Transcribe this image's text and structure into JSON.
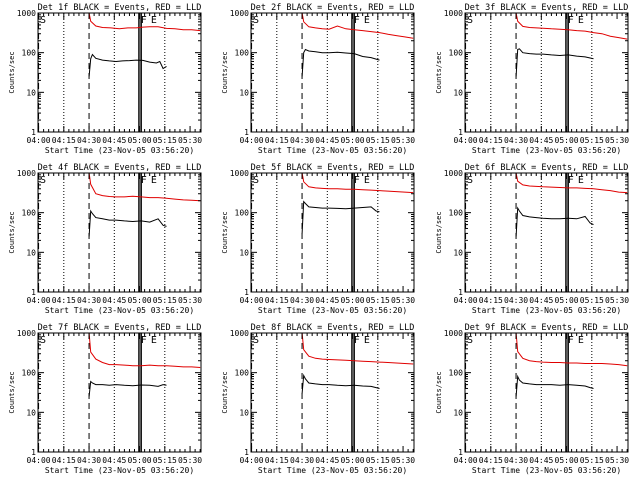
{
  "chart_data": [
    {
      "type": "line",
      "title": "Det 1f BLACK = Events, RED = LLD",
      "xlabel": "Start Time (23-Nov-05 03:56:20)",
      "ylabel": "Counts/sec",
      "x_tick_labels": [
        "04:00",
        "04:15",
        "04:30",
        "04:45",
        "05:00",
        "05:15",
        "05:30"
      ],
      "x_ticks_min": [
        4,
        19,
        34,
        49,
        64,
        79,
        94
      ],
      "xlim_min": [
        3.67,
        100.5
      ],
      "y_tick_labels": [
        "1",
        "10",
        "100",
        "1000"
      ],
      "ylim": [
        1,
        1000
      ],
      "yscale": "log",
      "markers": {
        "S": 3.67,
        "F": 63.5,
        "E": 69.5
      },
      "vlines": {
        "dotted": [
          19,
          49,
          79
        ],
        "dashed": [
          4,
          34
        ],
        "solid": [
          63.5,
          64.3,
          65.1
        ]
      },
      "series": [
        {
          "color": "#e00000",
          "x": [
            34,
            35,
            38,
            42,
            47,
            52,
            57,
            62,
            66,
            70,
            75,
            80,
            85,
            90,
            95,
            100
          ],
          "y": [
            1000,
            620,
            470,
            430,
            420,
            400,
            420,
            420,
            440,
            450,
            450,
            410,
            400,
            380,
            380,
            360
          ]
        },
        {
          "color": "#000000",
          "x": [
            34,
            35,
            36,
            38,
            42,
            46,
            50,
            54,
            58,
            62,
            66,
            70,
            74,
            76,
            78,
            80
          ],
          "y": [
            25,
            70,
            90,
            72,
            65,
            62,
            60,
            62,
            63,
            65,
            64,
            58,
            55,
            60,
            40,
            45
          ]
        }
      ]
    },
    {
      "type": "line",
      "title": "Det 2f BLACK = Events, RED = LLD",
      "xlabel": "Start Time (23-Nov-05 03:56:20)",
      "ylabel": "Counts/sec",
      "x_tick_labels": [
        "04:00",
        "04:15",
        "04:30",
        "04:45",
        "05:00",
        "05:15",
        "05:30"
      ],
      "x_ticks_min": [
        4,
        19,
        34,
        49,
        64,
        79,
        94
      ],
      "xlim_min": [
        3.67,
        100.5
      ],
      "y_tick_labels": [
        "1",
        "10",
        "100",
        "1000"
      ],
      "ylim": [
        1,
        1000
      ],
      "yscale": "log",
      "markers": {
        "S": 3.67,
        "F": 63.5,
        "E": 69.5
      },
      "vlines": {
        "dotted": [
          19,
          49,
          79
        ],
        "dashed": [
          4,
          34
        ],
        "solid": [
          63.5,
          64.3,
          65.1
        ]
      },
      "series": [
        {
          "color": "#e00000",
          "x": [
            34,
            35,
            38,
            42,
            46,
            50,
            55,
            60,
            65,
            70,
            75,
            80,
            85,
            90,
            95,
            100
          ],
          "y": [
            1000,
            600,
            450,
            420,
            400,
            390,
            470,
            400,
            380,
            360,
            340,
            320,
            290,
            270,
            250,
            230
          ]
        },
        {
          "color": "#000000",
          "x": [
            34,
            35,
            36,
            38,
            42,
            46,
            50,
            55,
            60,
            65,
            70,
            75,
            80
          ],
          "y": [
            25,
            100,
            120,
            110,
            105,
            100,
            100,
            102,
            98,
            95,
            80,
            75,
            65
          ]
        }
      ]
    },
    {
      "type": "line",
      "title": "Det 3f BLACK = Events, RED = LLD",
      "xlabel": "Start Time (23-Nov-05 03:56:20)",
      "ylabel": "Counts/sec",
      "x_tick_labels": [
        "04:00",
        "04:15",
        "04:30",
        "04:45",
        "05:00",
        "05:15",
        "05:30"
      ],
      "x_ticks_min": [
        4,
        19,
        34,
        49,
        64,
        79,
        94
      ],
      "xlim_min": [
        3.67,
        100.5
      ],
      "y_tick_labels": [
        "1",
        "10",
        "100",
        "1000"
      ],
      "ylim": [
        1,
        1000
      ],
      "yscale": "log",
      "markers": {
        "S": 3.67,
        "F": 63.5,
        "E": 69.5
      },
      "vlines": {
        "dotted": [
          19,
          49,
          79
        ],
        "dashed": [
          4,
          34
        ],
        "solid": [
          63.5,
          64.3,
          65.1
        ]
      },
      "series": [
        {
          "color": "#e00000",
          "x": [
            34,
            35,
            38,
            42,
            46,
            50,
            55,
            60,
            65,
            70,
            75,
            80,
            85,
            90,
            95,
            100
          ],
          "y": [
            1000,
            620,
            460,
            430,
            420,
            415,
            400,
            390,
            380,
            360,
            350,
            320,
            300,
            260,
            240,
            220
          ]
        },
        {
          "color": "#000000",
          "x": [
            34,
            35,
            36,
            38,
            42,
            46,
            50,
            55,
            60,
            65,
            70,
            75,
            80
          ],
          "y": [
            25,
            120,
            125,
            100,
            95,
            92,
            92,
            88,
            85,
            88,
            82,
            78,
            70
          ]
        }
      ]
    },
    {
      "type": "line",
      "title": "Det 4f BLACK = Events, RED = LLD",
      "xlabel": "Start Time (23-Nov-05 03:56:20)",
      "ylabel": "Counts/sec",
      "x_tick_labels": [
        "04:00",
        "04:15",
        "04:30",
        "04:45",
        "05:00",
        "05:15",
        "05:30"
      ],
      "x_ticks_min": [
        4,
        19,
        34,
        49,
        64,
        79,
        94
      ],
      "xlim_min": [
        3.67,
        100.5
      ],
      "y_tick_labels": [
        "1",
        "10",
        "100",
        "1000"
      ],
      "ylim": [
        1,
        1000
      ],
      "yscale": "log",
      "markers": {
        "S": 3.67,
        "F": 63.5,
        "E": 69.5
      },
      "vlines": {
        "dotted": [
          19,
          49,
          79
        ],
        "dashed": [
          4,
          34
        ],
        "solid": [
          63.5,
          64.3,
          65.1
        ]
      },
      "series": [
        {
          "color": "#e00000",
          "x": [
            34,
            35,
            38,
            42,
            46,
            50,
            55,
            60,
            65,
            70,
            75,
            80,
            85,
            90,
            95,
            100
          ],
          "y": [
            1000,
            520,
            300,
            270,
            255,
            250,
            250,
            260,
            250,
            240,
            240,
            230,
            220,
            210,
            205,
            200
          ]
        },
        {
          "color": "#000000",
          "x": [
            34,
            35,
            36,
            38,
            42,
            46,
            50,
            55,
            60,
            65,
            70,
            75,
            78,
            80
          ],
          "y": [
            25,
            110,
            95,
            75,
            70,
            65,
            65,
            62,
            60,
            62,
            58,
            70,
            48,
            45
          ]
        }
      ]
    },
    {
      "type": "line",
      "title": "Det 5f BLACK = Events, RED = LLD",
      "xlabel": "Start Time (23-Nov-05 03:56:20)",
      "ylabel": "Counts/sec",
      "x_tick_labels": [
        "04:00",
        "04:15",
        "04:30",
        "04:45",
        "05:00",
        "05:15",
        "05:30"
      ],
      "x_ticks_min": [
        4,
        19,
        34,
        49,
        64,
        79,
        94
      ],
      "xlim_min": [
        3.67,
        100.5
      ],
      "y_tick_labels": [
        "1",
        "10",
        "100",
        "1000"
      ],
      "ylim": [
        1,
        1000
      ],
      "yscale": "log",
      "markers": {
        "S": 3.67,
        "F": 63.5,
        "E": 69.5
      },
      "vlines": {
        "dotted": [
          19,
          49,
          79
        ],
        "dashed": [
          4,
          34
        ],
        "solid": [
          63.5,
          64.3,
          65.1
        ]
      },
      "series": [
        {
          "color": "#e00000",
          "x": [
            34,
            35,
            38,
            42,
            46,
            50,
            55,
            60,
            65,
            70,
            75,
            80,
            85,
            90,
            95,
            100
          ],
          "y": [
            1000,
            600,
            450,
            420,
            410,
            400,
            400,
            390,
            390,
            380,
            370,
            360,
            350,
            340,
            330,
            320
          ]
        },
        {
          "color": "#000000",
          "x": [
            34,
            35,
            36,
            38,
            42,
            46,
            50,
            55,
            60,
            65,
            70,
            75,
            78,
            80
          ],
          "y": [
            30,
            190,
            170,
            140,
            135,
            130,
            130,
            128,
            125,
            130,
            135,
            140,
            110,
            105
          ]
        }
      ]
    },
    {
      "type": "line",
      "title": "Det 6f BLACK = Events, RED = LLD",
      "xlabel": "Start Time (23-Nov-05 03:56:20)",
      "ylabel": "Counts/sec",
      "x_tick_labels": [
        "04:00",
        "04:15",
        "04:30",
        "04:45",
        "05:00",
        "05:15",
        "05:30"
      ],
      "x_ticks_min": [
        4,
        19,
        34,
        49,
        64,
        79,
        94
      ],
      "xlim_min": [
        3.67,
        100.5
      ],
      "y_tick_labels": [
        "1",
        "10",
        "100",
        "1000"
      ],
      "ylim": [
        1,
        1000
      ],
      "yscale": "log",
      "markers": {
        "S": 3.67,
        "F": 63.5,
        "E": 69.5
      },
      "vlines": {
        "dotted": [
          19,
          49,
          79
        ],
        "dashed": [
          4,
          34
        ],
        "solid": [
          63.5,
          64.3,
          65.1
        ]
      },
      "series": [
        {
          "color": "#e00000",
          "x": [
            34,
            35,
            38,
            42,
            46,
            50,
            55,
            60,
            65,
            70,
            75,
            80,
            85,
            90,
            95,
            100
          ],
          "y": [
            1000,
            620,
            500,
            470,
            460,
            450,
            440,
            430,
            420,
            420,
            410,
            400,
            380,
            360,
            330,
            320
          ]
        },
        {
          "color": "#000000",
          "x": [
            34,
            35,
            36,
            38,
            42,
            46,
            50,
            55,
            60,
            65,
            70,
            75,
            78,
            80
          ],
          "y": [
            25,
            130,
            110,
            85,
            78,
            75,
            72,
            70,
            70,
            72,
            70,
            80,
            55,
            50
          ]
        }
      ]
    },
    {
      "type": "line",
      "title": "Det 7f BLACK = Events, RED = LLD",
      "xlabel": "Start Time (23-Nov-05 03:56:20)",
      "ylabel": "Counts/sec",
      "x_tick_labels": [
        "04:00",
        "04:15",
        "04:30",
        "04:45",
        "05:00",
        "05:15",
        "05:30"
      ],
      "x_ticks_min": [
        4,
        19,
        34,
        49,
        64,
        79,
        94
      ],
      "xlim_min": [
        3.67,
        100.5
      ],
      "y_tick_labels": [
        "1",
        "10",
        "100",
        "1000"
      ],
      "ylim": [
        1,
        1000
      ],
      "yscale": "log",
      "markers": {
        "S": 3.67,
        "F": 63.5,
        "E": 69.5
      },
      "vlines": {
        "dotted": [
          19,
          49,
          79
        ],
        "dashed": [
          4,
          34
        ],
        "solid": [
          63.5,
          64.3,
          65.1
        ]
      },
      "series": [
        {
          "color": "#e00000",
          "x": [
            34,
            35,
            38,
            42,
            46,
            50,
            55,
            60,
            65,
            70,
            75,
            80,
            85,
            90,
            95,
            100
          ],
          "y": [
            1000,
            330,
            220,
            180,
            160,
            160,
            155,
            150,
            150,
            155,
            150,
            150,
            145,
            140,
            140,
            135
          ]
        },
        {
          "color": "#000000",
          "x": [
            34,
            35,
            36,
            38,
            42,
            46,
            50,
            55,
            60,
            65,
            70,
            75,
            78,
            80
          ],
          "y": [
            25,
            60,
            55,
            50,
            50,
            48,
            50,
            48,
            47,
            49,
            48,
            45,
            50,
            48
          ]
        }
      ]
    },
    {
      "type": "line",
      "title": "Det 8f BLACK = Events, RED = LLD",
      "xlabel": "Start Time (23-Nov-05 03:56:20)",
      "ylabel": "Counts/sec",
      "x_tick_labels": [
        "04:00",
        "04:15",
        "04:30",
        "04:45",
        "05:00",
        "05:15",
        "05:30"
      ],
      "x_ticks_min": [
        4,
        19,
        34,
        49,
        64,
        79,
        94
      ],
      "xlim_min": [
        3.67,
        100.5
      ],
      "y_tick_labels": [
        "1",
        "10",
        "100",
        "1000"
      ],
      "ylim": [
        1,
        1000
      ],
      "yscale": "log",
      "markers": {
        "S": 3.67,
        "F": 63.5,
        "E": 69.5
      },
      "vlines": {
        "dotted": [
          19,
          49,
          79
        ],
        "dashed": [
          4,
          34
        ],
        "solid": [
          63.5,
          64.3,
          65.1
        ]
      },
      "series": [
        {
          "color": "#e00000",
          "x": [
            34,
            35,
            38,
            42,
            46,
            50,
            55,
            60,
            65,
            70,
            75,
            80,
            85,
            90,
            95,
            100
          ],
          "y": [
            1000,
            380,
            260,
            230,
            220,
            215,
            210,
            205,
            200,
            195,
            190,
            185,
            180,
            175,
            170,
            165
          ]
        },
        {
          "color": "#000000",
          "x": [
            34,
            35,
            36,
            38,
            42,
            46,
            50,
            55,
            60,
            65,
            70,
            75,
            78,
            80
          ],
          "y": [
            30,
            85,
            70,
            55,
            52,
            50,
            50,
            48,
            47,
            48,
            46,
            45,
            42,
            40
          ]
        }
      ]
    },
    {
      "type": "line",
      "title": "Det 9f BLACK = Events, RED = LLD",
      "xlabel": "Start Time (23-Nov-05 03:56:20)",
      "ylabel": "Counts/sec",
      "x_tick_labels": [
        "04:00",
        "04:15",
        "04:30",
        "04:45",
        "05:00",
        "05:15",
        "05:30"
      ],
      "x_ticks_min": [
        4,
        19,
        34,
        49,
        64,
        79,
        94
      ],
      "xlim_min": [
        3.67,
        100.5
      ],
      "y_tick_labels": [
        "1",
        "10",
        "100",
        "1000"
      ],
      "ylim": [
        1,
        1000
      ],
      "yscale": "log",
      "markers": {
        "S": 3.67,
        "F": 63.5,
        "E": 69.5
      },
      "vlines": {
        "dotted": [
          19,
          49,
          79
        ],
        "dashed": [
          4,
          34
        ],
        "solid": [
          63.5,
          64.3,
          65.1
        ]
      },
      "series": [
        {
          "color": "#e00000",
          "x": [
            34,
            35,
            38,
            42,
            46,
            50,
            55,
            60,
            65,
            70,
            75,
            80,
            85,
            90,
            95,
            100
          ],
          "y": [
            1000,
            340,
            230,
            200,
            190,
            185,
            180,
            180,
            175,
            175,
            170,
            170,
            170,
            165,
            160,
            150
          ]
        },
        {
          "color": "#000000",
          "x": [
            34,
            35,
            36,
            38,
            42,
            46,
            50,
            55,
            60,
            65,
            70,
            75,
            78,
            80
          ],
          "y": [
            25,
            80,
            65,
            55,
            52,
            50,
            50,
            50,
            48,
            50,
            48,
            46,
            42,
            40
          ]
        }
      ]
    }
  ]
}
